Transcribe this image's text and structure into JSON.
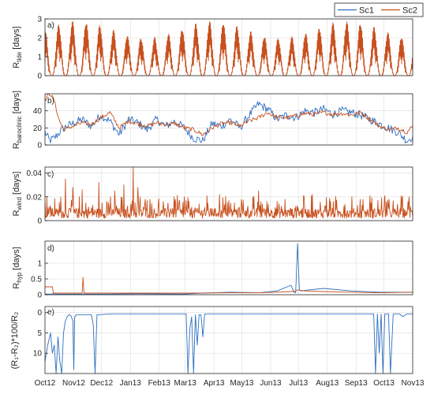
{
  "legend": {
    "series": [
      "Sc1",
      "Sc2"
    ],
    "placement": "top-right"
  },
  "colors": {
    "Sc1": "#2e6fbf",
    "Sc2": "#c8501e",
    "grid": "#dcdcdc",
    "axis": "#262626"
  },
  "x_axis": {
    "tick_labels": [
      "Oct12",
      "Nov12",
      "Dec12",
      "Jan13",
      "Feb13",
      "Mar13",
      "Apr13",
      "May13",
      "Jun13",
      "Jul13",
      "Aug13",
      "Sep13",
      "Oct13",
      "Nov13"
    ],
    "month_lengths": [
      31,
      30,
      31,
      31,
      28,
      31,
      30,
      31,
      30,
      31,
      31,
      30,
      31
    ]
  },
  "chart_data": [
    {
      "panel": "a)",
      "type": "line",
      "ylabel": "R",
      "ylabel_sub": "tide",
      "ylabel_unit": " [days]",
      "ylim": [
        0,
        3
      ],
      "yticks": [
        "0",
        "1",
        "2",
        "3"
      ],
      "grid": true,
      "series": [
        {
          "name": "Sc1",
          "visible": false
        },
        {
          "name": "Sc2",
          "pattern": "spring-neap cycle, period ~14.8 days",
          "peak_range": [
            2.0,
            2.9
          ],
          "trough": 0,
          "start_day": 0,
          "end_day": 396
        }
      ]
    },
    {
      "panel": "b)",
      "type": "line",
      "ylabel": "R",
      "ylabel_sub": "baroclinic",
      "ylabel_unit": " [days]",
      "ylim": [
        0,
        60
      ],
      "yticks": [
        "0",
        "20",
        "40"
      ],
      "grid": true,
      "series": [
        {
          "name": "Sc1",
          "x_days": [
            0,
            5,
            10,
            20,
            30,
            40,
            50,
            60,
            70,
            80,
            90,
            100,
            110,
            120,
            130,
            140,
            150,
            160,
            170,
            180,
            190,
            200,
            210,
            220,
            230,
            240,
            250,
            260,
            270,
            280,
            290,
            300,
            310,
            320,
            330,
            340,
            350,
            360,
            370,
            380,
            390,
            396
          ],
          "values": [
            15,
            5,
            8,
            20,
            25,
            30,
            22,
            35,
            28,
            12,
            30,
            26,
            18,
            30,
            22,
            28,
            20,
            8,
            5,
            25,
            22,
            30,
            20,
            35,
            48,
            42,
            30,
            35,
            32,
            40,
            38,
            42,
            36,
            40,
            38,
            35,
            30,
            25,
            20,
            15,
            5,
            10
          ]
        },
        {
          "name": "Sc2",
          "x_days": [
            0,
            3,
            6,
            10,
            15,
            20,
            30,
            40,
            50,
            60,
            70,
            80,
            90,
            100,
            110,
            120,
            130,
            140,
            150,
            160,
            170,
            180,
            190,
            200,
            210,
            220,
            230,
            240,
            250,
            260,
            270,
            280,
            290,
            300,
            310,
            320,
            330,
            340,
            350,
            360,
            370,
            380,
            390,
            396
          ],
          "values": [
            52,
            58,
            60,
            52,
            30,
            18,
            22,
            26,
            24,
            32,
            38,
            20,
            28,
            25,
            22,
            26,
            24,
            25,
            20,
            18,
            12,
            20,
            25,
            26,
            22,
            28,
            32,
            38,
            32,
            32,
            34,
            37,
            36,
            38,
            36,
            37,
            35,
            38,
            30,
            22,
            18,
            20,
            15,
            22
          ]
        }
      ]
    },
    {
      "panel": "c)",
      "type": "line",
      "ylabel": "R",
      "ylabel_sub": "wind",
      "ylabel_unit": " [days]",
      "ylim": [
        0,
        0.045
      ],
      "yticks": [
        "0",
        "0.02",
        "0.04"
      ],
      "grid": true,
      "series": [
        {
          "name": "Sc1",
          "note": "overlaps Sc2"
        },
        {
          "name": "Sc2",
          "pattern": "noisy spikes",
          "baseline": 0.002,
          "spikes": [
            {
              "day": 22,
              "value": 0.035
            },
            {
              "day": 30,
              "value": 0.028
            },
            {
              "day": 40,
              "value": 0.026
            },
            {
              "day": 58,
              "value": 0.032
            },
            {
              "day": 75,
              "value": 0.025
            },
            {
              "day": 85,
              "value": 0.03
            },
            {
              "day": 95,
              "value": 0.045
            },
            {
              "day": 100,
              "value": 0.028
            },
            {
              "day": 150,
              "value": 0.02
            },
            {
              "day": 188,
              "value": 0.022
            },
            {
              "day": 230,
              "value": 0.025
            },
            {
              "day": 288,
              "value": 0.022
            },
            {
              "day": 350,
              "value": 0.021
            },
            {
              "day": 392,
              "value": 0.02
            }
          ]
        }
      ]
    },
    {
      "panel": "d)",
      "type": "line",
      "ylabel": "R",
      "ylabel_sub": "hyp",
      "ylabel_unit": " [days]",
      "ylim": [
        0,
        1.7
      ],
      "yticks": [
        "0",
        "0.5",
        "1"
      ],
      "grid": true,
      "series": [
        {
          "name": "Sc1",
          "x_days": [
            0,
            8,
            9,
            10,
            40,
            41,
            42,
            43,
            70,
            100,
            150,
            170,
            200,
            230,
            250,
            265,
            268,
            270,
            272,
            274,
            276,
            280,
            300,
            330,
            360,
            396
          ],
          "values": [
            0.02,
            0.02,
            0.05,
            0.02,
            0.02,
            0.02,
            0.02,
            0.02,
            0.02,
            0.03,
            0.02,
            0.05,
            0.08,
            0.06,
            0.12,
            0.3,
            0.08,
            0.06,
            1.62,
            0.15,
            0.12,
            0.14,
            0.2,
            0.12,
            0.08,
            0.08
          ]
        },
        {
          "name": "Sc2",
          "x_days": [
            0,
            8,
            9,
            10,
            40,
            41,
            42,
            43,
            70,
            100,
            150,
            200,
            230,
            250,
            265,
            270,
            272,
            280,
            300,
            330,
            360,
            396
          ],
          "values": [
            0.25,
            0.25,
            0.05,
            0.05,
            0.05,
            0.55,
            0.05,
            0.05,
            0.05,
            0.05,
            0.05,
            0.06,
            0.06,
            0.08,
            0.1,
            0.12,
            0.15,
            0.12,
            0.1,
            0.08,
            0.06,
            0.08
          ]
        }
      ]
    },
    {
      "panel": "e)",
      "type": "line",
      "ylabel": "(R₁-R₂)*100/R₂",
      "ylim": [
        15,
        -1.5
      ],
      "yticks": [
        "0",
        "5",
        "10"
      ],
      "grid": true,
      "series": [
        {
          "name": "Sc1",
          "x_days": [
            0,
            3,
            6,
            8,
            10,
            12,
            14,
            16,
            18,
            20,
            22,
            24,
            26,
            28,
            30,
            31,
            32,
            34,
            36,
            38,
            40,
            42,
            44,
            46,
            48,
            50,
            52,
            54,
            56,
            58,
            60,
            70,
            80,
            90,
            100,
            110,
            120,
            130,
            140,
            150,
            152,
            154,
            156,
            158,
            160,
            162,
            164,
            166,
            168,
            170,
            172,
            175,
            178,
            180,
            182,
            185,
            190,
            200,
            210,
            215,
            218,
            220,
            222,
            225,
            230,
            240,
            260,
            280,
            300,
            320,
            340,
            350,
            352,
            354,
            356,
            358,
            360,
            362,
            364,
            366,
            368,
            370,
            372,
            375,
            378,
            380,
            382,
            385,
            390,
            396
          ],
          "values": [
            12,
            8,
            5,
            10,
            8,
            15,
            6,
            12,
            15,
            5,
            2,
            1,
            0.5,
            0.8,
            2,
            14,
            1,
            0.5,
            0.5,
            0.5,
            0.5,
            0.5,
            0.5,
            0.5,
            0.5,
            0.5,
            3,
            15,
            0.5,
            0.5,
            0.5,
            0.3,
            0.3,
            0.3,
            0.3,
            0.3,
            0.3,
            0.3,
            0.3,
            0.3,
            0.3,
            15,
            4,
            1,
            15,
            0.5,
            8,
            0.5,
            0.5,
            6,
            0.3,
            0.3,
            0.3,
            0.3,
            0.3,
            0.3,
            0.3,
            0.3,
            0.3,
            0.3,
            0.3,
            0.3,
            0.3,
            0.3,
            0.3,
            0.3,
            0.3,
            0.3,
            0.3,
            0.3,
            0.3,
            0.3,
            0.3,
            0.3,
            15,
            0.3,
            10,
            0.3,
            15,
            0.3,
            0.3,
            0.3,
            15,
            0.3,
            0.3,
            0.3,
            0.3,
            1,
            0.3,
            0.3
          ]
        }
      ]
    }
  ]
}
